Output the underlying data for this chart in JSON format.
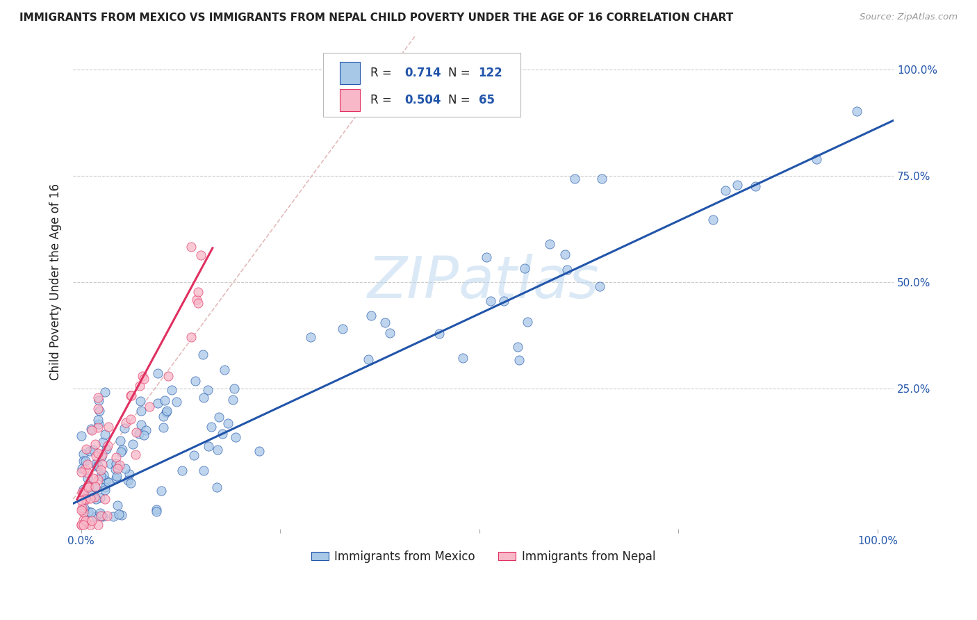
{
  "title": "IMMIGRANTS FROM MEXICO VS IMMIGRANTS FROM NEPAL CHILD POVERTY UNDER THE AGE OF 16 CORRELATION CHART",
  "source": "Source: ZipAtlas.com",
  "ylabel": "Child Poverty Under the Age of 16",
  "watermark": "ZIPatlas",
  "legend_r1": "R =  0.714",
  "legend_n1": "N = 122",
  "legend_r2": "R =  0.504",
  "legend_n2": "N =  65",
  "color_mexico": "#a8c8e8",
  "color_nepal": "#f8b8c8",
  "line_color_mexico": "#2255aa",
  "line_color_nepal": "#e03060",
  "color_blue_text": "#2255aa",
  "color_dark_text": "#222222",
  "background": "#ffffff",
  "grid_color": "#cccccc",
  "ref_line_color": "#ddaaaa",
  "xlim_min": -0.01,
  "xlim_max": 1.02,
  "ylim_min": -0.08,
  "ylim_max": 1.08,
  "ytick_positions": [
    0.0,
    0.25,
    0.5,
    0.75,
    1.0
  ],
  "ytick_labels_right": [
    "",
    "25.0%",
    "50.0%",
    "75.0%",
    "100.0%"
  ],
  "xtick_positions": [
    0.0,
    0.25,
    0.5,
    0.75,
    1.0
  ],
  "xtick_labels": [
    "0.0%",
    "",
    "",
    "",
    "100.0%"
  ],
  "mex_line_x0": -0.01,
  "mex_line_x1": 1.02,
  "mex_line_y0": -0.02,
  "mex_line_y1": 0.88,
  "nep_line_x0": -0.005,
  "nep_line_x1": 0.165,
  "nep_line_y0": -0.01,
  "nep_line_y1": 0.58,
  "ref_line_x0": -0.01,
  "ref_line_x1": 0.42,
  "ref_line_y0": -0.01,
  "ref_line_y1": 1.08
}
